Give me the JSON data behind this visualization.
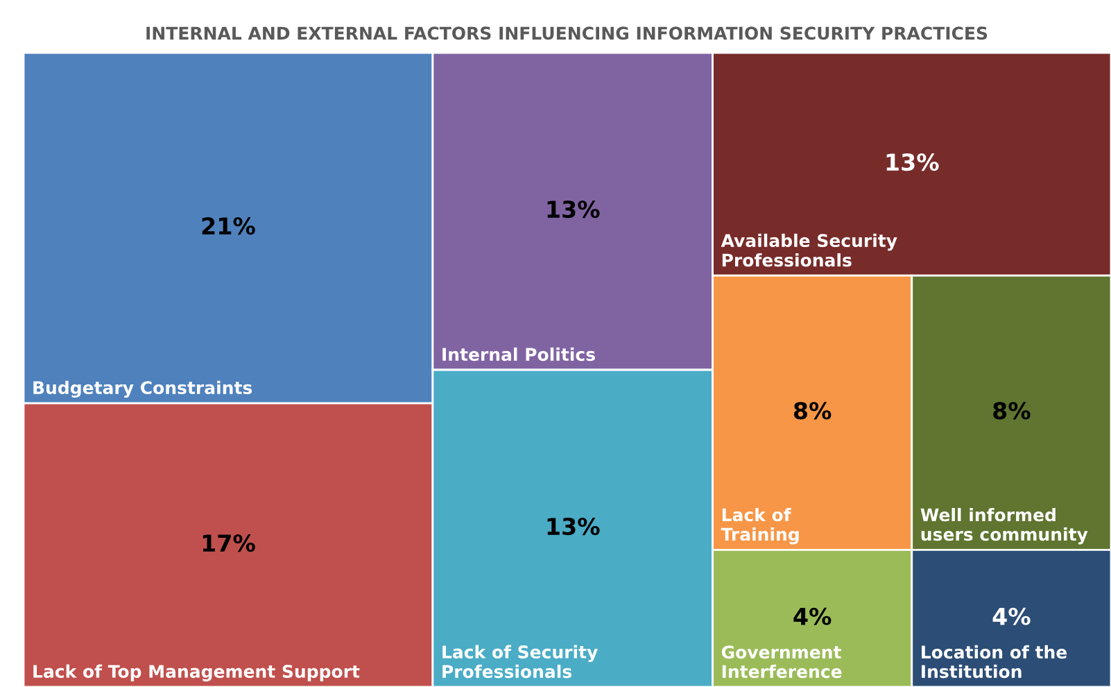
{
  "chart_data": {
    "type": "other",
    "title": "INTERNAL AND EXTERNAL FACTORS INFLUENCING INFORMATION SECURITY PRACTICES",
    "categories": [
      "Budgetary Constraints",
      "Lack of Top Management Support",
      "Internal Politics",
      "Lack of Security\nProfessionals",
      "Available Security\nProfessionals",
      "Lack of\nTraining",
      "Well informed\nusers community",
      "Government\nInterference",
      "Location of the\nInstitution"
    ],
    "values": [
      21,
      17,
      13,
      13,
      13,
      8,
      8,
      4,
      4
    ],
    "colors": [
      "#4f81bd",
      "#c0504d",
      "#8064a2",
      "#4bacc6",
      "#772c2a",
      "#f79646",
      "#5f7530",
      "#9bbb59",
      "#2c4d75"
    ],
    "value_labels": [
      "21%",
      "17%",
      "13%",
      "13%",
      "13%",
      "8%",
      "8%",
      "4%",
      "4%"
    ]
  }
}
